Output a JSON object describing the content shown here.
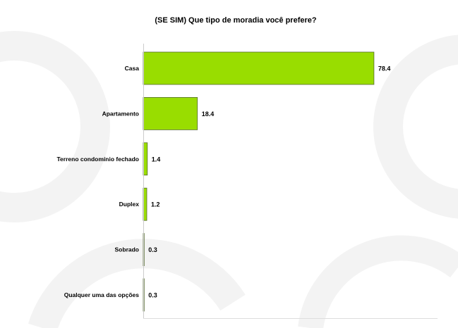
{
  "chart_data": {
    "type": "bar",
    "orientation": "horizontal",
    "title": "(SE SIM) Que tipo de moradia você prefere?",
    "categories": [
      "Casa",
      "Apartamento",
      "Terreno condomínio fechado",
      "Duplex",
      "Sobrado",
      "Qualquer uma das opções"
    ],
    "values": [
      78.4,
      18.4,
      1.4,
      1.2,
      0.3,
      0.3
    ],
    "value_labels": [
      "78.4",
      "18.4",
      "1.4",
      "1.2",
      "0.3",
      "0.3"
    ],
    "xlim": [
      0,
      100
    ],
    "grid": false,
    "legend": "none",
    "bar_color": "#99dd00",
    "bar_edge_color": "#556b2f"
  },
  "watermark_color": "#f3f3f3"
}
